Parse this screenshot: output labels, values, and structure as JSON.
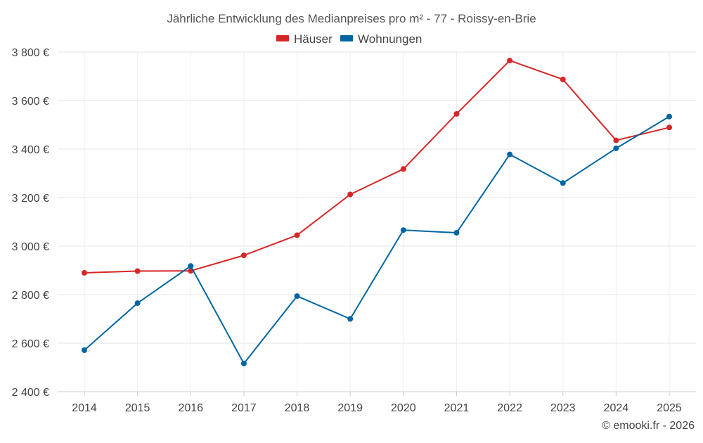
{
  "chart_data": {
    "type": "line",
    "title": "Jährliche Entwicklung des Medianpreises pro m² - 77 - Roissy-en-Brie",
    "categories": [
      "2014",
      "2015",
      "2016",
      "2017",
      "2018",
      "2019",
      "2020",
      "2021",
      "2022",
      "2023",
      "2024",
      "2025"
    ],
    "y_ticks": [
      2400,
      2600,
      2800,
      3000,
      3200,
      3400,
      3600,
      3800
    ],
    "y_tick_labels": [
      "2 400 €",
      "2 600 €",
      "2 800 €",
      "3 000 €",
      "3 200 €",
      "3 400 €",
      "3 600 €",
      "3 800 €"
    ],
    "ylim": [
      2400,
      3800
    ],
    "grid": true,
    "legend_position": "top-center",
    "series": [
      {
        "name": "Häuser",
        "color": "#d62728",
        "values": [
          2890,
          2897,
          2898,
          2962,
          3045,
          3213,
          3318,
          3545,
          3765,
          3687,
          3436,
          3489
        ]
      },
      {
        "name": "Wohnungen",
        "color": "#0066a1",
        "values": [
          2571,
          2765,
          2918,
          2516,
          2794,
          2700,
          3066,
          3055,
          3378,
          3260,
          3403,
          3534
        ]
      }
    ],
    "credit": "© emooki.fr - 2026"
  }
}
